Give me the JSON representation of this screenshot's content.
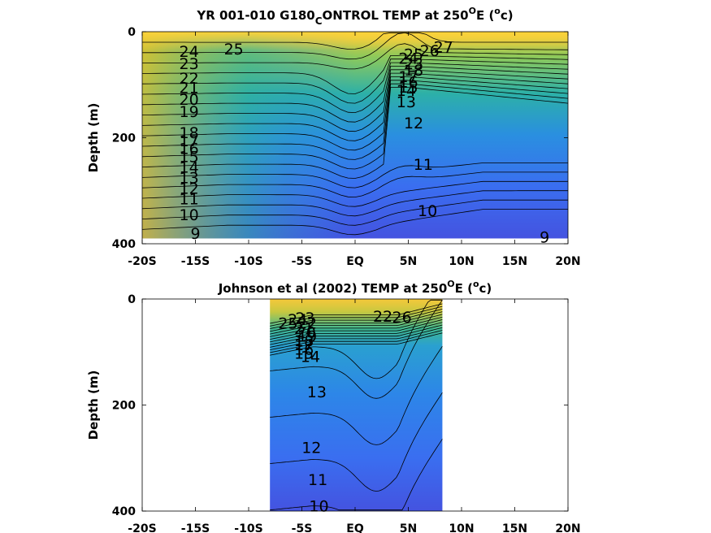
{
  "chart_data": [
    {
      "type": "contour",
      "title": {
        "pre": "YR 001-010 G180",
        "sub": "C",
        "post": "ONTROL TEMP at 250",
        "sup": "O",
        "post2": "E (",
        "sup2": "o",
        "post3": "c)"
      },
      "ylabel": "Depth (m)",
      "xlim": [
        -20,
        20
      ],
      "ylim": [
        400,
        0
      ],
      "x_ticks": [
        -20,
        -15,
        -10,
        -5,
        0,
        5,
        10,
        15,
        20
      ],
      "x_tick_labels": [
        "-20S",
        "-15S",
        "-10S",
        "-5S",
        "EQ",
        "5N",
        "10N",
        "15N",
        "20N"
      ],
      "y_ticks": [
        0,
        200,
        400
      ],
      "y_tick_labels": [
        "0",
        "200",
        "400"
      ],
      "data_extent": {
        "x": [
          -20,
          20
        ],
        "depth": [
          0,
          390
        ]
      },
      "contour_levels": [
        9,
        10,
        11,
        12,
        13,
        14,
        15,
        16,
        17,
        18,
        19,
        20,
        21,
        22,
        23,
        24,
        25,
        26,
        27
      ],
      "contour_labels": [
        {
          "text": "24",
          "x": -15.6,
          "depth": 37
        },
        {
          "text": "25",
          "x": -11.4,
          "depth": 32
        },
        {
          "text": "23",
          "x": -15.6,
          "depth": 60
        },
        {
          "text": "22",
          "x": -15.6,
          "depth": 87
        },
        {
          "text": "21",
          "x": -15.6,
          "depth": 105
        },
        {
          "text": "20",
          "x": -15.6,
          "depth": 127
        },
        {
          "text": "19",
          "x": -15.6,
          "depth": 150
        },
        {
          "text": "18",
          "x": -15.6,
          "depth": 190
        },
        {
          "text": "17",
          "x": -15.6,
          "depth": 205
        },
        {
          "text": "16",
          "x": -15.6,
          "depth": 220
        },
        {
          "text": "15",
          "x": -15.6,
          "depth": 235
        },
        {
          "text": "14",
          "x": -15.6,
          "depth": 255
        },
        {
          "text": "13",
          "x": -15.6,
          "depth": 275
        },
        {
          "text": "12",
          "x": -15.6,
          "depth": 295
        },
        {
          "text": "11",
          "x": -15.6,
          "depth": 315
        },
        {
          "text": "10",
          "x": -15.6,
          "depth": 345
        },
        {
          "text": "9",
          "x": -15.0,
          "depth": 380
        },
        {
          "text": "27",
          "x": 8.3,
          "depth": 28
        },
        {
          "text": "26",
          "x": 7.0,
          "depth": 35
        },
        {
          "text": "25",
          "x": 5.5,
          "depth": 42
        },
        {
          "text": "24",
          "x": 5.0,
          "depth": 50
        },
        {
          "text": "23",
          "x": 5.5,
          "depth": 60
        },
        {
          "text": "18",
          "x": 5.5,
          "depth": 72
        },
        {
          "text": "17",
          "x": 5.0,
          "depth": 84
        },
        {
          "text": "16",
          "x": 5.0,
          "depth": 94
        },
        {
          "text": "15",
          "x": 5.0,
          "depth": 104
        },
        {
          "text": "14",
          "x": 4.8,
          "depth": 110
        },
        {
          "text": "13",
          "x": 4.8,
          "depth": 132
        },
        {
          "text": "12",
          "x": 5.5,
          "depth": 172
        },
        {
          "text": "11",
          "x": 6.4,
          "depth": 250
        },
        {
          "text": "10",
          "x": 6.8,
          "depth": 337
        },
        {
          "text": "9",
          "x": 17.8,
          "depth": 387
        }
      ]
    },
    {
      "type": "contour",
      "title": {
        "pre": "Johnson et al (2002) TEMP at 250",
        "sup": "O",
        "post": "E (",
        "sup2": "o",
        "post2": "c)"
      },
      "ylabel": "Depth (m)",
      "xlim": [
        -20,
        20
      ],
      "ylim": [
        400,
        0
      ],
      "x_ticks": [
        -20,
        -15,
        -10,
        -5,
        0,
        5,
        10,
        15,
        20
      ],
      "x_tick_labels": [
        "-20S",
        "-15S",
        "-10S",
        "-5S",
        "EQ",
        "5N",
        "10N",
        "15N",
        "20N"
      ],
      "y_ticks": [
        0,
        200,
        400
      ],
      "y_tick_labels": [
        "0",
        "200",
        "400"
      ],
      "data_extent": {
        "x": [
          -8,
          8.2
        ],
        "depth": [
          0,
          400
        ]
      },
      "contour_levels": [
        10,
        11,
        12,
        13,
        14,
        15,
        16,
        17,
        18,
        19,
        20,
        21,
        22,
        23,
        24,
        25,
        26
      ],
      "contour_labels": [
        {
          "text": "25",
          "x": -6.3,
          "depth": 45
        },
        {
          "text": "24",
          "x": -5.4,
          "depth": 38
        },
        {
          "text": "23",
          "x": -4.7,
          "depth": 35
        },
        {
          "text": "22",
          "x": -4.5,
          "depth": 45
        },
        {
          "text": "21",
          "x": -4.8,
          "depth": 55
        },
        {
          "text": "20",
          "x": -4.6,
          "depth": 62
        },
        {
          "text": "19",
          "x": -4.5,
          "depth": 70
        },
        {
          "text": "18",
          "x": -4.8,
          "depth": 78
        },
        {
          "text": "17",
          "x": -4.8,
          "depth": 86
        },
        {
          "text": "16",
          "x": -4.8,
          "depth": 94
        },
        {
          "text": "15",
          "x": -4.8,
          "depth": 102
        },
        {
          "text": "14",
          "x": -4.2,
          "depth": 108
        },
        {
          "text": "22",
          "x": 2.6,
          "depth": 32
        },
        {
          "text": "26",
          "x": 4.4,
          "depth": 34
        },
        {
          "text": "13",
          "x": -3.6,
          "depth": 175
        },
        {
          "text": "12",
          "x": -4.1,
          "depth": 280
        },
        {
          "text": "11",
          "x": -3.5,
          "depth": 340
        },
        {
          "text": "10",
          "x": -3.4,
          "depth": 390
        }
      ]
    }
  ]
}
